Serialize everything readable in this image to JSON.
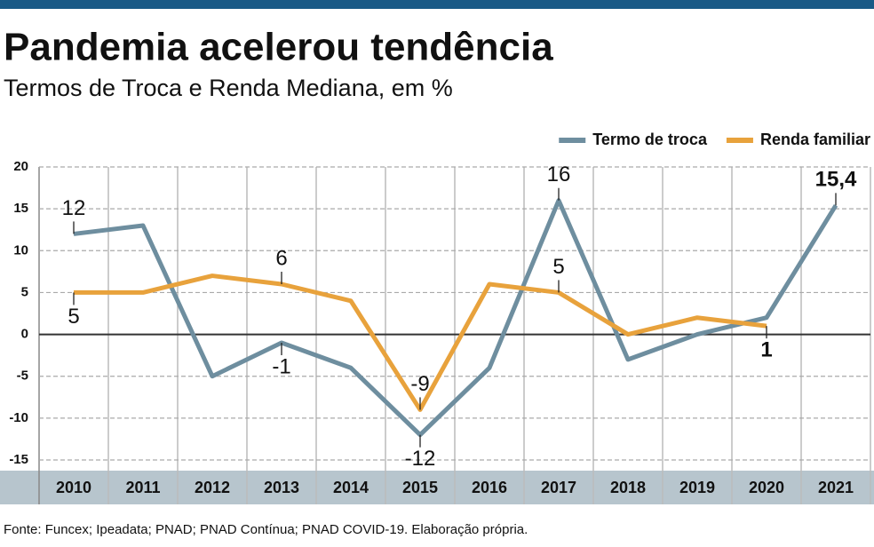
{
  "chart_data": {
    "type": "line",
    "title": "Pandemia acelerou tendência",
    "subtitle": "Termos de Troca e Renda Mediana, em %",
    "source": "Fonte: Funcex; Ipeadata; PNAD; PNAD Contínua; PNAD COVID-19. Elaboração própria.",
    "categories": [
      "2010",
      "2011",
      "2012",
      "2013",
      "2014",
      "2015",
      "2016",
      "2017",
      "2018",
      "2019",
      "2020",
      "2021"
    ],
    "series": [
      {
        "name": "Termo de troca",
        "color": "#6e8e9f",
        "values": [
          12,
          13,
          -5,
          -1,
          -4,
          -12,
          -4,
          16,
          -3,
          0,
          2,
          15.4
        ],
        "value_labels": [
          "12",
          null,
          null,
          "-1",
          null,
          "-12",
          null,
          "16",
          null,
          null,
          null,
          "15,4"
        ]
      },
      {
        "name": "Renda familiar",
        "color": "#e8a23c",
        "values": [
          5,
          5,
          7,
          6,
          4,
          -9,
          6,
          5,
          0,
          2,
          1,
          null
        ],
        "value_labels": [
          "5",
          null,
          null,
          "6",
          null,
          "-9",
          null,
          "5",
          null,
          null,
          "1",
          null
        ]
      }
    ],
    "ylim": [
      -15,
      20
    ],
    "yticks": [
      -15,
      -10,
      -5,
      0,
      5,
      10,
      15,
      20
    ],
    "grid": true,
    "legend": "top-right"
  }
}
